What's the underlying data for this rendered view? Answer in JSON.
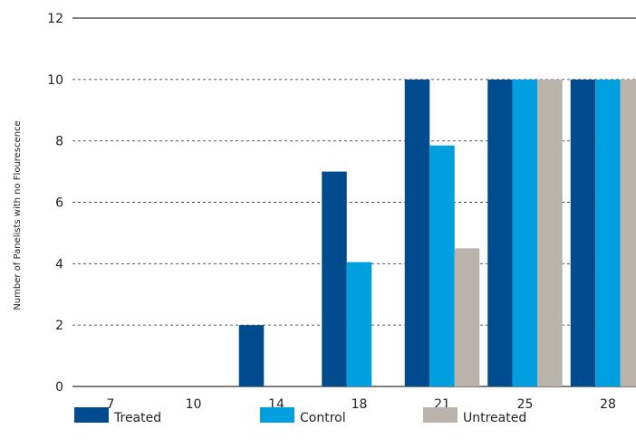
{
  "chart_data": {
    "type": "bar",
    "categories": [
      "7",
      "10",
      "14",
      "18",
      "21",
      "25",
      "28"
    ],
    "series": [
      {
        "name": "Treated",
        "color": "#004b8d",
        "values": [
          0,
          0,
          2,
          7,
          10,
          10,
          10
        ]
      },
      {
        "name": "Control",
        "color": "#00a0e0",
        "values": [
          0,
          0,
          0,
          4.05,
          7.85,
          10,
          10
        ]
      },
      {
        "name": "Untreated",
        "color": "#bab3ab",
        "values": [
          0,
          0,
          0,
          0,
          4.5,
          10,
          10
        ]
      }
    ],
    "title": "",
    "xlabel": "",
    "ylabel": "Number of Panelists with no Flourescence",
    "ylim": [
      0,
      12
    ],
    "yticks": [
      "0",
      "2",
      "4",
      "6",
      "8",
      "10",
      "12"
    ],
    "grid": "horizontal dashed",
    "legend": "bottom"
  }
}
